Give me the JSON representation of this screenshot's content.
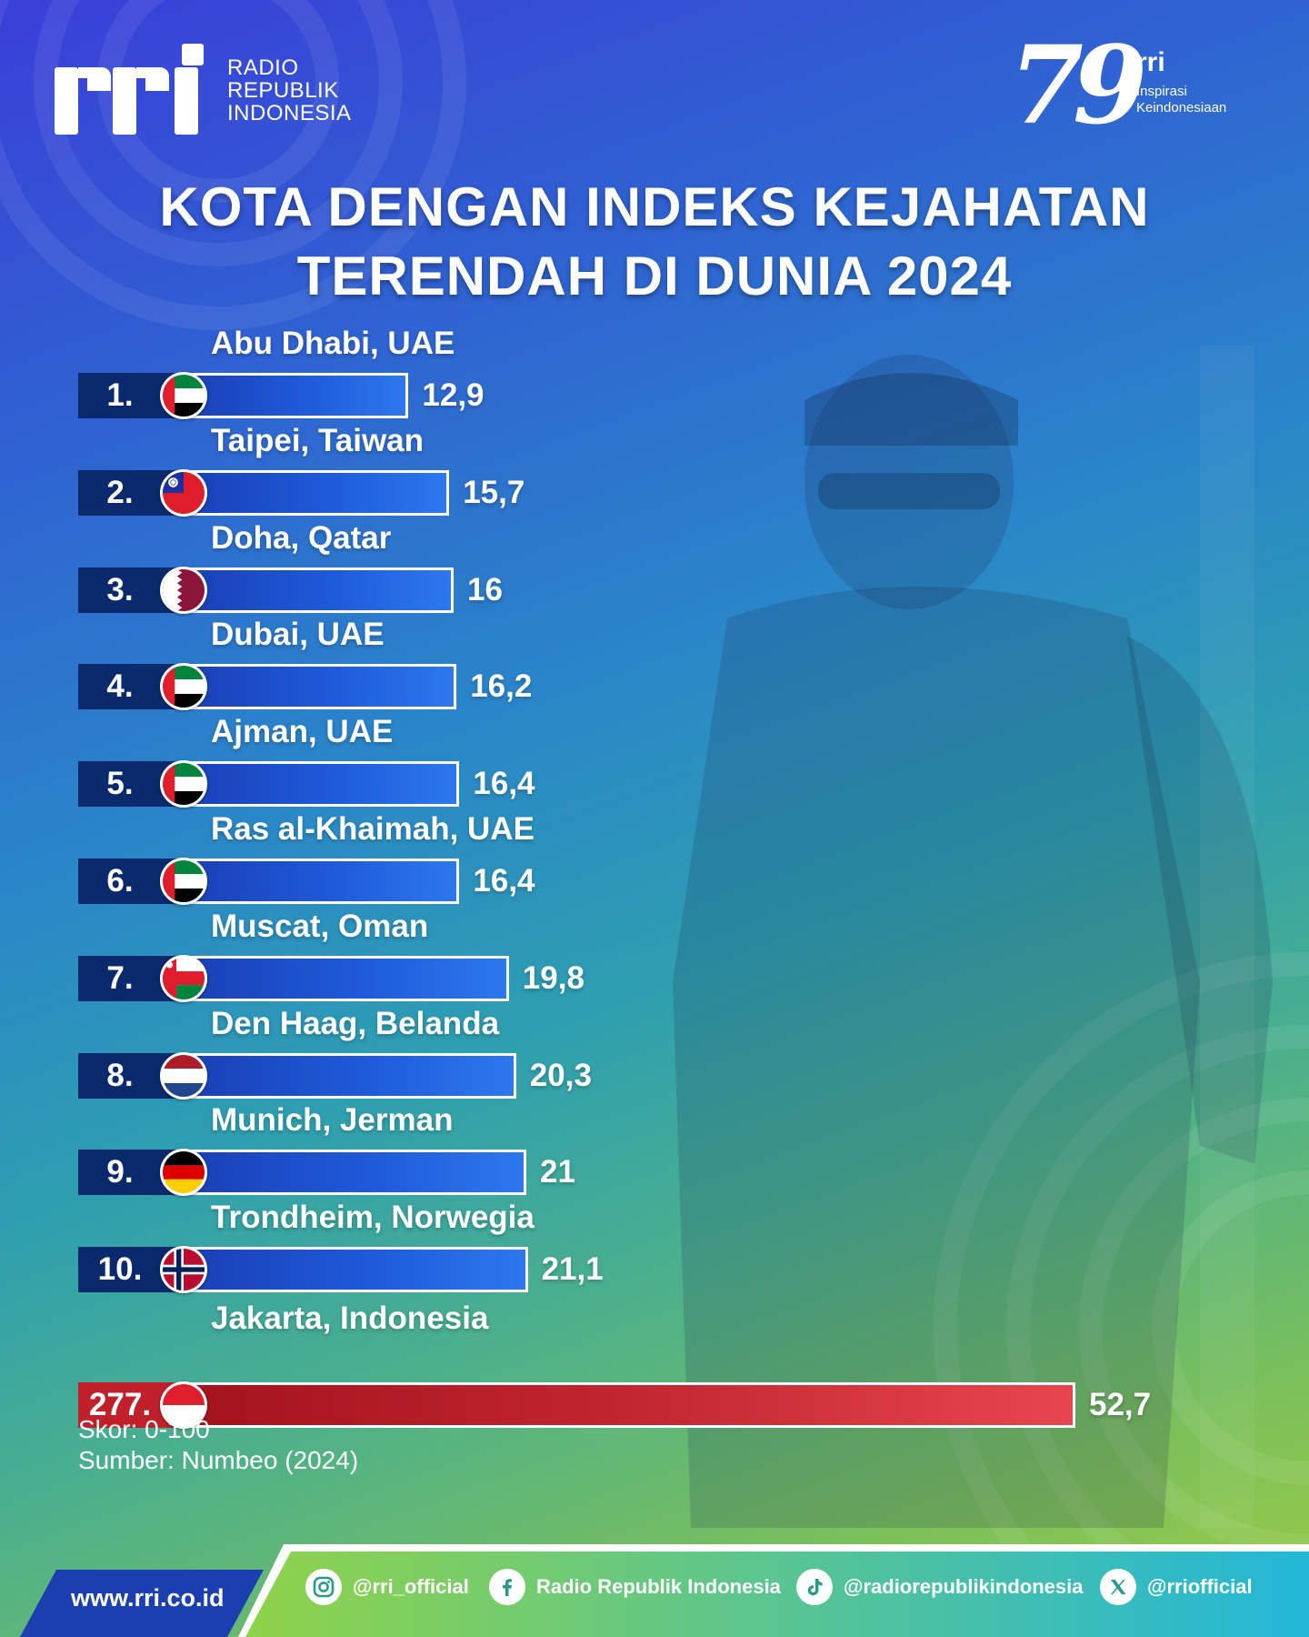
{
  "brand": {
    "logo_mark": "rri",
    "logo_lines": [
      "RADIO",
      "REPUBLIK",
      "INDONESIA"
    ],
    "badge_number": "79",
    "badge_rri": "rri",
    "badge_lines": [
      "Inspirasi",
      "Keindonesiaan"
    ]
  },
  "title_lines": [
    "KOTA DENGAN INDEKS KEJAHATAN",
    "TERENDAH DI DUNIA 2024"
  ],
  "chart_data": {
    "type": "bar",
    "orientation": "horizontal",
    "categories": [
      "Abu Dhabi, UAE",
      "Taipei, Taiwan",
      "Doha, Qatar",
      "Dubai, UAE",
      "Ajman, UAE",
      "Ras al-Khaimah, UAE",
      "Muscat, Oman",
      "Den Haag, Belanda",
      "Munich, Jerman",
      "Trondheim, Norwegia",
      "Jakarta, Indonesia"
    ],
    "ranks": [
      "1.",
      "2.",
      "3.",
      "4.",
      "5.",
      "6.",
      "7.",
      "8.",
      "9.",
      "10.",
      "277."
    ],
    "values": [
      12.9,
      15.7,
      16,
      16.2,
      16.4,
      16.4,
      19.8,
      20.3,
      21,
      21.1,
      52.7
    ],
    "value_labels": [
      "12,9",
      "15,7",
      "16",
      "16,2",
      "16,4",
      "16,4",
      "19,8",
      "20,3",
      "21",
      "21,1",
      "52,7"
    ],
    "flags": [
      "uae-flag-icon",
      "taiwan-flag-icon",
      "qatar-flag-icon",
      "uae-flag-icon",
      "uae-flag-icon",
      "uae-flag-icon",
      "oman-flag-icon",
      "netherlands-flag-icon",
      "germany-flag-icon",
      "norway-flag-icon",
      "indonesia-flag-icon"
    ],
    "highlight_index": 10,
    "colors": {
      "bar": "#1e5ad9",
      "highlight": "#c22630",
      "rank_box": "#0b2a6e"
    }
  },
  "notes": {
    "scale": "Skor: 0-100",
    "source": "Sumber: Numbeo (2024)"
  },
  "footer": {
    "website": "www.rri.co.id",
    "socials": [
      {
        "icon": "instagram-icon",
        "label": "@rri_official"
      },
      {
        "icon": "facebook-icon",
        "label": "Radio Republik Indonesia"
      },
      {
        "icon": "tiktok-icon",
        "label": "@radiorepublikindonesia"
      },
      {
        "icon": "x-icon",
        "label": "@rriofficial"
      }
    ]
  }
}
